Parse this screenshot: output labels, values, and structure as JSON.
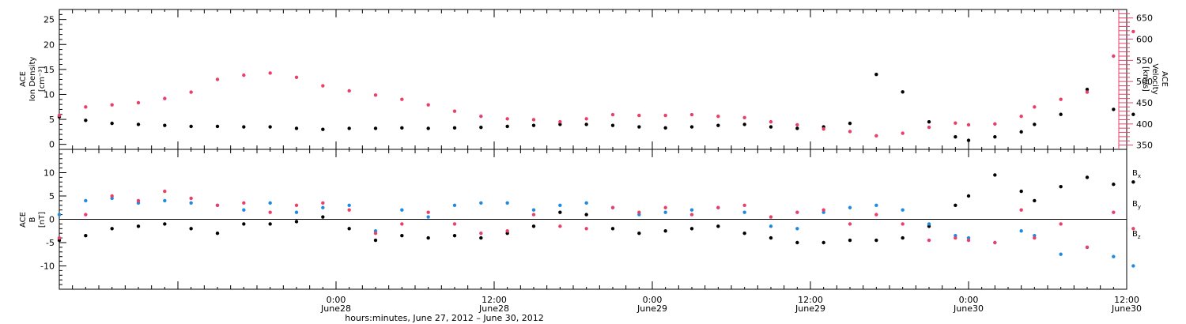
{
  "colors": {
    "black": "#000000",
    "pink": "#e8406b",
    "blue": "#1f8be0"
  },
  "xaxis": {
    "title": "hours:minutes, June 27, 2012 – June 30, 2012",
    "range_hours": [
      -21,
      60
    ],
    "ticks": [
      {
        "t": 0,
        "time": "0:00",
        "date": "June28"
      },
      {
        "t": 12,
        "time": "12:00",
        "date": "June28"
      },
      {
        "t": 24,
        "time": "0:00",
        "date": "June29"
      },
      {
        "t": 36,
        "time": "12:00",
        "date": "June29"
      },
      {
        "t": 48,
        "time": "0:00",
        "date": "June30"
      },
      {
        "t": 60,
        "time": "12:00",
        "date": "June30"
      }
    ]
  },
  "chart_data": [
    {
      "type": "scatter",
      "panel": "top",
      "left_label": [
        "ACE",
        "Ion Density",
        "[cm⁻³]"
      ],
      "right_label": [
        "ACE",
        "Velocity",
        "[km/s]"
      ],
      "ylim_left": [
        -1,
        27
      ],
      "ylim_right": [
        340,
        670
      ],
      "yticks_left": [
        0,
        5,
        10,
        15,
        20,
        25
      ],
      "yticks_right": [
        350,
        400,
        450,
        500,
        550,
        600,
        650
      ],
      "series": [
        {
          "name": "Ion Density",
          "axis": "left",
          "color": "black",
          "x": [
            -21,
            -19,
            -17,
            -15,
            -13,
            -11,
            -9,
            -7,
            -5,
            -3,
            -1,
            1,
            3,
            5,
            7,
            9,
            11,
            13,
            15,
            17,
            19,
            21,
            23,
            25,
            27,
            29,
            31,
            33,
            35,
            37,
            39,
            41,
            43,
            45,
            47,
            48,
            50,
            52,
            53,
            55,
            57,
            59,
            60.5
          ],
          "y": [
            5.5,
            4.8,
            4.2,
            4.0,
            3.8,
            3.6,
            3.6,
            3.5,
            3.5,
            3.2,
            3.0,
            3.2,
            3.2,
            3.3,
            3.2,
            3.3,
            3.4,
            3.6,
            3.8,
            4.0,
            4.0,
            3.8,
            3.5,
            3.3,
            3.5,
            3.8,
            4.0,
            3.5,
            3.2,
            3.5,
            4.2,
            14.0,
            10.5,
            4.5,
            1.5,
            0.8,
            1.5,
            2.5,
            4.0,
            6.0,
            11.0,
            7.0,
            6.0
          ]
        },
        {
          "name": "Velocity",
          "axis": "right",
          "color": "pink",
          "x": [
            -21,
            -19,
            -17,
            -15,
            -13,
            -11,
            -9,
            -7,
            -5,
            -3,
            -1,
            1,
            3,
            5,
            7,
            9,
            11,
            13,
            15,
            17,
            19,
            21,
            23,
            25,
            27,
            29,
            31,
            33,
            35,
            37,
            39,
            41,
            43,
            45,
            47,
            48,
            50,
            52,
            53,
            55,
            57,
            59,
            60.5
          ],
          "y": [
            420,
            440,
            445,
            450,
            460,
            475,
            505,
            515,
            520,
            510,
            490,
            478,
            468,
            458,
            445,
            430,
            418,
            412,
            410,
            405,
            412,
            422,
            420,
            420,
            422,
            418,
            415,
            405,
            398,
            388,
            382,
            372,
            378,
            392,
            402,
            398,
            400,
            418,
            440,
            458,
            475,
            560,
            618
          ]
        }
      ]
    },
    {
      "type": "scatter",
      "panel": "bottom",
      "left_label": [
        "ACE",
        "B",
        "[nT]"
      ],
      "ylim": [
        -15,
        15
      ],
      "yticks": [
        -10,
        -5,
        0,
        5,
        10
      ],
      "legend": [
        {
          "text": "B",
          "sub": "x",
          "color": "black"
        },
        {
          "text": "B",
          "sub": "y",
          "color": "blue"
        },
        {
          "text": "B",
          "sub": "z",
          "color": "pink"
        }
      ],
      "series": [
        {
          "name": "Bx",
          "color": "black",
          "x": [
            -21,
            -19,
            -17,
            -15,
            -13,
            -11,
            -9,
            -7,
            -5,
            -3,
            -1,
            1,
            3,
            5,
            7,
            9,
            11,
            13,
            15,
            17,
            19,
            21,
            23,
            25,
            27,
            29,
            31,
            33,
            35,
            37,
            39,
            41,
            43,
            45,
            47,
            48,
            50,
            52,
            53,
            55,
            57,
            59,
            60.5
          ],
          "y": [
            -4.5,
            -3.5,
            -2.0,
            -1.5,
            -1.0,
            -2.0,
            -3.0,
            -1.0,
            -1.0,
            -0.5,
            0.5,
            -2.0,
            -4.5,
            -3.5,
            -4.0,
            -3.5,
            -4.0,
            -3.0,
            -1.5,
            1.5,
            1.0,
            -2.0,
            -3.0,
            -2.5,
            -2.0,
            -1.5,
            -3.0,
            -4.0,
            -5.0,
            -5.0,
            -4.5,
            -4.5,
            -4.0,
            -1.5,
            3.0,
            5.0,
            9.5,
            6.0,
            4.0,
            7.0,
            9.0,
            7.5,
            8.0
          ]
        },
        {
          "name": "By",
          "color": "blue",
          "x": [
            -21,
            -19,
            -17,
            -15,
            -13,
            -11,
            -9,
            -7,
            -5,
            -3,
            -1,
            1,
            3,
            5,
            7,
            9,
            11,
            13,
            15,
            17,
            19,
            21,
            23,
            25,
            27,
            29,
            31,
            33,
            35,
            37,
            39,
            41,
            43,
            45,
            47,
            48,
            50,
            52,
            53,
            55,
            57,
            59,
            60.5
          ],
          "y": [
            1.0,
            4.0,
            4.5,
            3.5,
            4.0,
            3.5,
            3.0,
            2.0,
            3.5,
            1.5,
            2.5,
            3.0,
            -2.5,
            2.0,
            0.5,
            3.0,
            3.5,
            3.5,
            2.0,
            3.0,
            3.5,
            2.5,
            1.0,
            1.5,
            2.0,
            2.5,
            1.5,
            -1.5,
            -2.0,
            1.5,
            2.5,
            3.0,
            2.0,
            -1.0,
            -3.5,
            -4.0,
            -5.0,
            -2.5,
            -3.5,
            -7.5,
            -6.0,
            -8.0,
            -10.0
          ]
        },
        {
          "name": "Bz",
          "color": "pink",
          "x": [
            -21,
            -19,
            -17,
            -15,
            -13,
            -11,
            -9,
            -7,
            -5,
            -3,
            -1,
            1,
            3,
            5,
            7,
            9,
            11,
            13,
            15,
            17,
            19,
            21,
            23,
            25,
            27,
            29,
            31,
            33,
            35,
            37,
            39,
            41,
            43,
            45,
            47,
            48,
            50,
            52,
            53,
            55,
            57,
            59,
            60.5
          ],
          "y": [
            -4.0,
            1.0,
            5.0,
            4.0,
            6.0,
            4.5,
            3.0,
            3.5,
            1.5,
            3.0,
            3.5,
            2.0,
            -3.0,
            -1.0,
            1.5,
            -1.0,
            -3.0,
            -2.5,
            1.0,
            -1.5,
            -2.0,
            2.5,
            1.5,
            2.5,
            1.0,
            2.5,
            3.0,
            0.5,
            1.5,
            2.0,
            -1.0,
            1.0,
            -1.0,
            -4.5,
            -4.0,
            -4.5,
            -5.0,
            2.0,
            -4.0,
            -1.0,
            -6.0,
            1.5,
            -2.0
          ]
        }
      ]
    }
  ]
}
